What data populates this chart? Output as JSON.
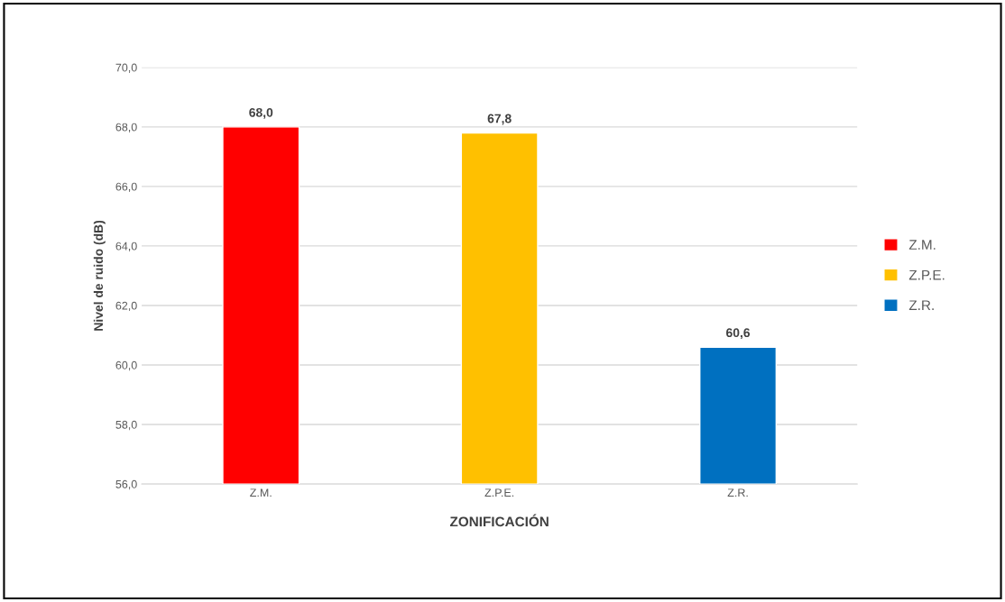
{
  "chart_data": {
    "type": "bar",
    "xlabel": "ZONIFICACIÓN",
    "ylabel": "Nivel de ruido (dB)",
    "categories": [
      "Z.M.",
      "Z.P.E.",
      "Z.R."
    ],
    "stacked": true,
    "series": [
      {
        "name": "Z.M.",
        "color": "#ff0000",
        "values": [
          68.0,
          null,
          null
        ],
        "value_labels": [
          "68,0",
          null,
          null
        ]
      },
      {
        "name": "Z.P.E.",
        "color": "#ffc000",
        "values": [
          null,
          67.8,
          null
        ],
        "value_labels": [
          null,
          "67,8",
          null
        ]
      },
      {
        "name": "Z.R.",
        "color": "#0070c0",
        "values": [
          null,
          null,
          60.6
        ],
        "value_labels": [
          null,
          null,
          "60,6"
        ]
      }
    ],
    "ylim": [
      56,
      70
    ],
    "yticks": [
      {
        "value": 56,
        "label": "56,0"
      },
      {
        "value": 58,
        "label": "58,0"
      },
      {
        "value": 60,
        "label": "60,0"
      },
      {
        "value": 62,
        "label": "62,0"
      },
      {
        "value": 64,
        "label": "64,0"
      },
      {
        "value": 66,
        "label": "66,0"
      },
      {
        "value": 68,
        "label": "68,0"
      },
      {
        "value": 70,
        "label": "70,0"
      }
    ],
    "grid": "y",
    "legend": "right"
  }
}
